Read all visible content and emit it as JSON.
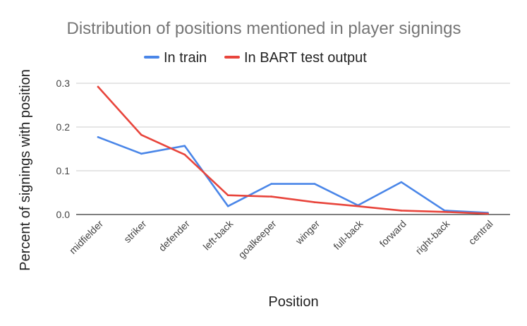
{
  "chart_data": {
    "type": "line",
    "title": "Distribution of positions mentioned in player signings",
    "xlabel": "Position",
    "ylabel": "Percent of signings with position",
    "categories": [
      "midfielder",
      "striker",
      "defender",
      "left-back",
      "goalkeeper",
      "winger",
      "full-back",
      "forward",
      "right-back",
      "central"
    ],
    "series": [
      {
        "name": "In train",
        "color": "#4a86e8",
        "values": [
          0.177,
          0.139,
          0.157,
          0.019,
          0.07,
          0.07,
          0.021,
          0.074,
          0.009,
          0.004
        ]
      },
      {
        "name": "In BART test output",
        "color": "#e8453c",
        "values": [
          0.292,
          0.182,
          0.137,
          0.044,
          0.041,
          0.028,
          0.019,
          0.009,
          0.006,
          0.002
        ]
      }
    ],
    "ylim": [
      0,
      0.3
    ],
    "yticks": [
      "0.0",
      "0.1",
      "0.2",
      "0.3"
    ],
    "grid": true,
    "legend_position": "top"
  }
}
